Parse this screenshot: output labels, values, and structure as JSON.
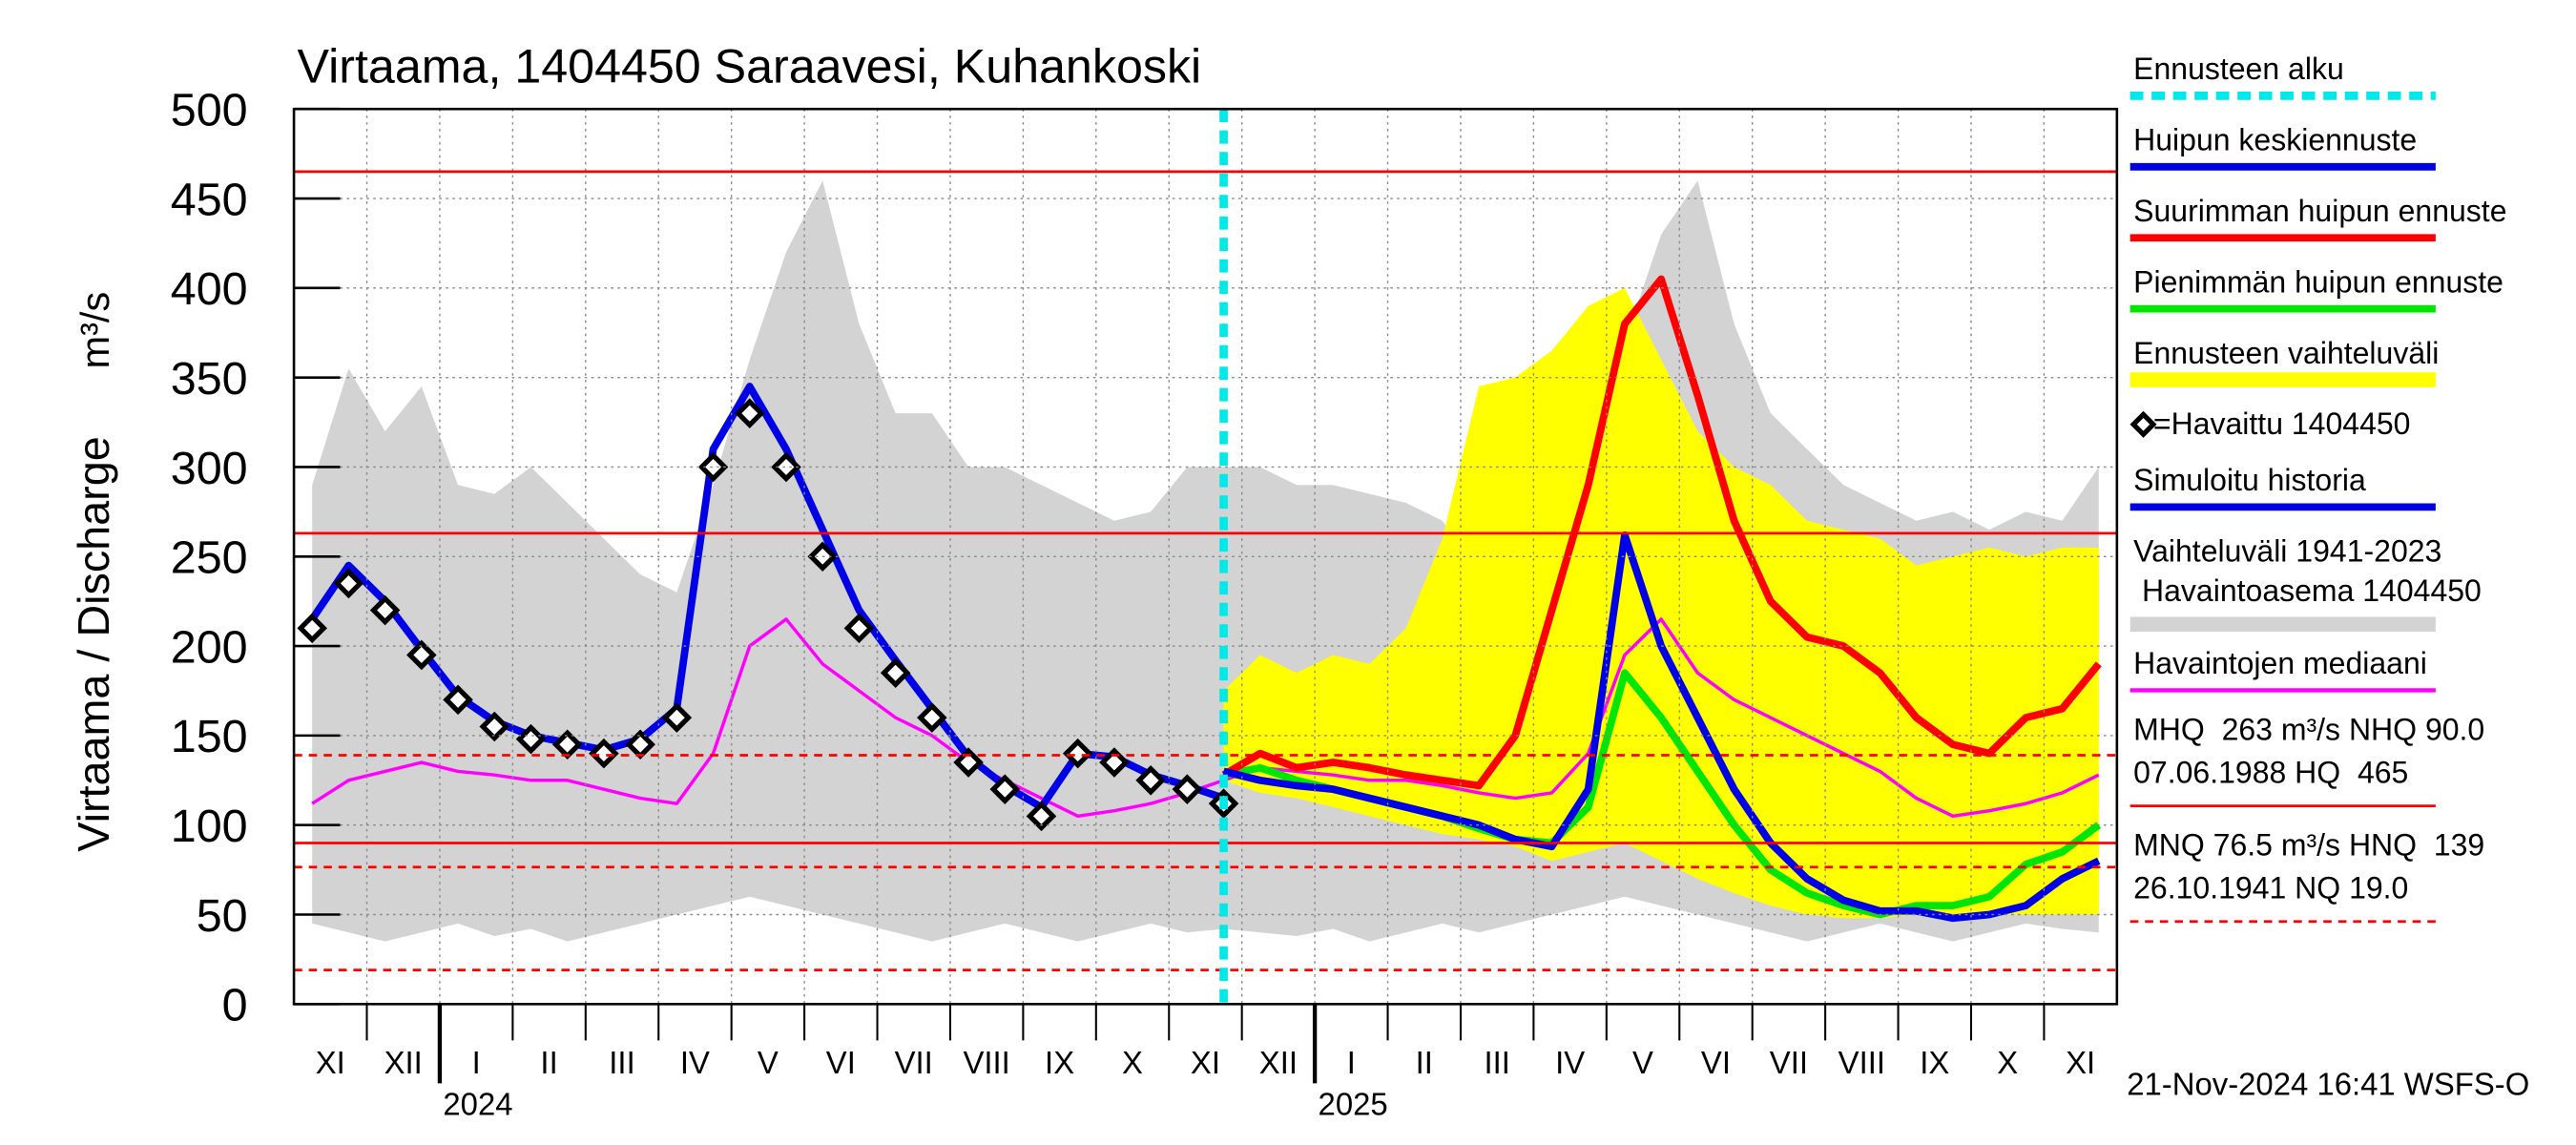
{
  "chart_data": {
    "type": "line",
    "title": "Virtaama, 1404450 Saraavesi, Kuhankoski",
    "y_label": "Virtaama / Discharge",
    "y_unit": "m³/s",
    "ylim": [
      0,
      500
    ],
    "yticks": [
      0,
      50,
      100,
      150,
      200,
      250,
      300,
      350,
      400,
      450,
      500
    ],
    "grid": true,
    "categories": [
      "XI",
      null,
      "XII",
      null,
      "I",
      null,
      "II",
      null,
      "III",
      null,
      "IV",
      null,
      "V",
      null,
      "VI",
      null,
      "VII",
      null,
      "VIII",
      null,
      "IX",
      null,
      "X",
      null,
      "XI",
      null,
      "XII",
      null,
      "I",
      null,
      "II",
      null,
      "III",
      null,
      "IV",
      null,
      "V",
      null,
      "VI",
      null,
      "VII",
      null,
      "VIII",
      null,
      "IX",
      null,
      "X",
      null,
      "XI",
      null
    ],
    "years": [
      "2024",
      "2025"
    ],
    "forecast_marker": {
      "name": "Ennusteen alku",
      "color": "#00e8e8"
    },
    "series": [
      {
        "name": "Huipun keskiennuste",
        "kind": "line",
        "color": "#0000e6",
        "values": [
          null,
          null,
          null,
          null,
          null,
          null,
          null,
          null,
          null,
          null,
          null,
          null,
          null,
          null,
          null,
          null,
          null,
          null,
          null,
          null,
          null,
          null,
          null,
          null,
          null,
          130,
          125,
          122,
          120,
          115,
          110,
          105,
          100,
          92,
          88,
          120,
          262,
          200,
          160,
          120,
          90,
          70,
          58,
          52,
          52,
          48,
          50,
          55,
          70,
          80
        ]
      },
      {
        "name": "Suurimman huipun ennuste",
        "kind": "line",
        "color": "#ff0000",
        "values": [
          null,
          null,
          null,
          null,
          null,
          null,
          null,
          null,
          null,
          null,
          null,
          null,
          null,
          null,
          null,
          null,
          null,
          null,
          null,
          null,
          null,
          null,
          null,
          null,
          null,
          128,
          140,
          132,
          135,
          132,
          128,
          125,
          122,
          150,
          220,
          290,
          380,
          405,
          340,
          270,
          225,
          205,
          200,
          185,
          160,
          145,
          140,
          160,
          165,
          190
        ]
      },
      {
        "name": "Pienimmän huipun ennuste",
        "kind": "line",
        "color": "#00e600",
        "values": [
          null,
          null,
          null,
          null,
          null,
          null,
          null,
          null,
          null,
          null,
          null,
          null,
          null,
          null,
          null,
          null,
          null,
          null,
          null,
          null,
          null,
          null,
          null,
          null,
          null,
          128,
          132,
          125,
          120,
          115,
          110,
          105,
          98,
          92,
          90,
          110,
          185,
          160,
          130,
          100,
          75,
          62,
          55,
          50,
          55,
          55,
          60,
          78,
          85,
          100
        ]
      },
      {
        "name": "Ennusteen vaihteluväli",
        "kind": "band",
        "color": "#ffff00",
        "values": [
          null,
          null,
          null,
          null,
          null,
          null,
          null,
          null,
          null,
          null,
          null,
          null,
          null,
          null,
          null,
          null,
          null,
          null,
          null,
          null,
          null,
          null,
          null,
          null,
          null,
          175,
          195,
          185,
          195,
          190,
          210,
          260,
          345,
          350,
          365,
          390,
          400,
          360,
          320,
          300,
          290,
          270,
          265,
          260,
          245,
          250,
          255,
          250,
          255,
          255
        ],
        "lower": [
          null,
          null,
          null,
          null,
          null,
          null,
          null,
          null,
          null,
          null,
          null,
          null,
          null,
          null,
          null,
          null,
          null,
          null,
          null,
          null,
          null,
          null,
          null,
          null,
          null,
          125,
          118,
          115,
          110,
          105,
          100,
          95,
          92,
          88,
          80,
          85,
          90,
          80,
          70,
          62,
          55,
          50,
          48,
          48,
          50,
          50,
          50,
          50,
          50,
          50
        ]
      },
      {
        "name": "=Havaittu 1404450",
        "kind": "markers",
        "color": "#000000",
        "values": [
          210,
          235,
          220,
          195,
          170,
          155,
          148,
          145,
          140,
          145,
          160,
          300,
          330,
          300,
          250,
          210,
          185,
          160,
          135,
          120,
          105,
          140,
          135,
          125,
          120,
          112,
          null,
          null,
          null,
          null,
          null,
          null,
          null,
          null,
          null,
          null,
          null,
          null,
          null,
          null,
          null,
          null,
          null,
          null,
          null,
          null,
          null,
          null,
          null,
          null
        ]
      },
      {
        "name": "Simuloitu historia",
        "kind": "line",
        "color": "#0000e6",
        "values": [
          215,
          245,
          225,
          198,
          172,
          158,
          150,
          146,
          142,
          148,
          165,
          310,
          345,
          310,
          265,
          220,
          192,
          165,
          138,
          122,
          110,
          140,
          138,
          128,
          122,
          115,
          null,
          null,
          null,
          null,
          null,
          null,
          null,
          null,
          null,
          null,
          null,
          null,
          null,
          null,
          null,
          null,
          null,
          null,
          null,
          null,
          null,
          null,
          null,
          null
        ]
      },
      {
        "name": [
          "Vaihteluväli 1941-2023",
          " Havaintoasema 1404450"
        ],
        "kind": "band",
        "color": "#d3d3d3",
        "values": [
          290,
          355,
          320,
          345,
          290,
          285,
          300,
          280,
          260,
          240,
          230,
          290,
          360,
          420,
          460,
          380,
          330,
          330,
          300,
          300,
          290,
          280,
          270,
          275,
          300,
          300,
          300,
          290,
          290,
          285,
          280,
          270,
          240,
          230,
          250,
          290,
          370,
          430,
          460,
          380,
          330,
          310,
          290,
          280,
          270,
          275,
          265,
          275,
          270,
          300
        ],
        "lower": [
          45,
          40,
          35,
          40,
          45,
          38,
          42,
          35,
          40,
          45,
          50,
          55,
          60,
          55,
          50,
          45,
          40,
          35,
          40,
          45,
          40,
          35,
          40,
          45,
          40,
          42,
          40,
          38,
          42,
          35,
          40,
          45,
          40,
          45,
          50,
          55,
          60,
          55,
          50,
          45,
          40,
          35,
          40,
          45,
          40,
          35,
          40,
          45,
          42,
          40
        ]
      },
      {
        "name": "Havaintojen mediaani",
        "kind": "thin_line",
        "color": "#ff00ff",
        "values": [
          112,
          125,
          130,
          135,
          130,
          128,
          125,
          125,
          120,
          115,
          112,
          140,
          200,
          215,
          190,
          175,
          160,
          150,
          135,
          125,
          115,
          105,
          108,
          112,
          118,
          125,
          132,
          130,
          128,
          125,
          125,
          122,
          118,
          115,
          118,
          140,
          195,
          215,
          185,
          170,
          160,
          150,
          140,
          130,
          115,
          105,
          108,
          112,
          118,
          128
        ]
      }
    ],
    "reference_lines": [
      {
        "value": 465,
        "dash": false
      },
      {
        "value": 263,
        "dash": false
      },
      {
        "value": 139,
        "dash": true
      },
      {
        "value": 90,
        "dash": false
      },
      {
        "value": 76.5,
        "dash": true
      },
      {
        "value": 19,
        "dash": true
      }
    ],
    "notes": [
      {
        "lines": [
          "MHQ  263 m³/s NHQ 90.0",
          "07.06.1988 HQ  465"
        ],
        "dash": false
      },
      {
        "lines": [
          "MNQ 76.5 m³/s HNQ  139",
          "26.10.1941 NQ 19.0"
        ],
        "dash": true
      }
    ],
    "footer": "21-Nov-2024 16:41 WSFS-O"
  }
}
